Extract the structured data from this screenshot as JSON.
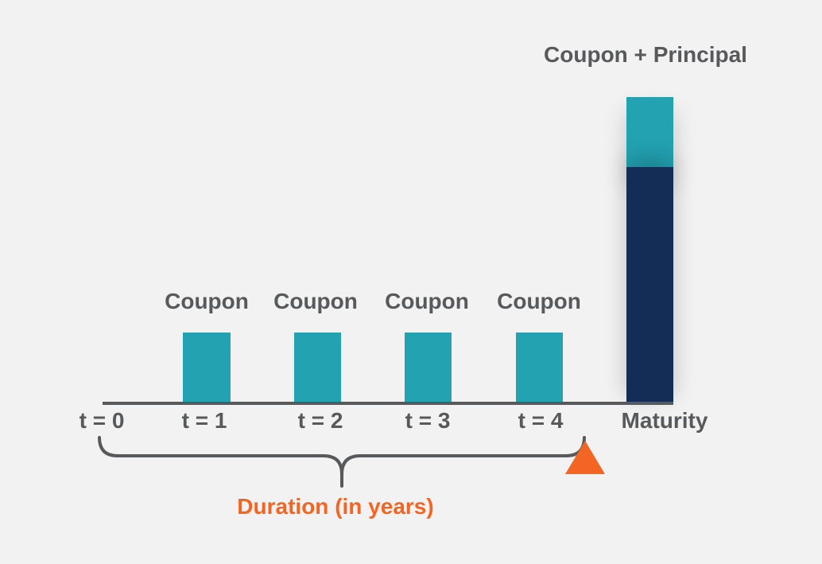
{
  "colors": {
    "background": "#f2f2f2",
    "coupon": "#23a2b2",
    "principal": "#142d56",
    "axis": "#58595b",
    "text": "#58595b",
    "accent": "#f26522"
  },
  "coupon_label": "Coupon",
  "final_label": "Coupon + Principal",
  "time_labels": [
    "t = 0",
    "t = 1",
    "t = 2",
    "t = 3",
    "t = 4",
    "Maturity"
  ],
  "duration_label": "Duration (in years)",
  "marker_icon": "orange-triangle"
}
